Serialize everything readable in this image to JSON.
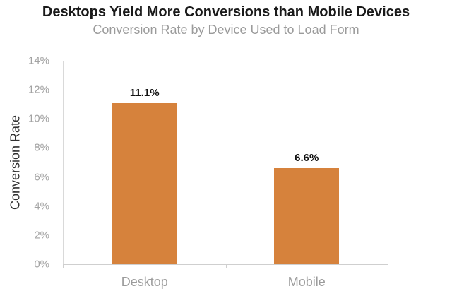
{
  "chart": {
    "title": "Desktops Yield More Conversions than Mobile Devices",
    "subtitle": "Conversion Rate by Device Used to Load Form",
    "ylabel": "Conversion Rate"
  },
  "chart_data": {
    "type": "bar",
    "title": "Desktops Yield More Conversions than Mobile Devices",
    "subtitle": "Conversion Rate by Device Used to Load Form",
    "xlabel": "",
    "ylabel": "Conversion Rate",
    "categories": [
      "Desktop",
      "Mobile"
    ],
    "values": [
      11.1,
      6.6
    ],
    "data_labels": [
      "11.1%",
      "6.6%"
    ],
    "ylim": [
      0,
      14
    ],
    "ytick_step": 2,
    "ytick_labels": [
      "0%",
      "2%",
      "4%",
      "6%",
      "8%",
      "10%",
      "12%",
      "14%"
    ],
    "grid": "horizontal-dashed",
    "legend": "none",
    "colors": {
      "bar": "#D6823C",
      "title_text": "#1A1A1A",
      "muted_text": "#9B9B9B",
      "value_label_text": "#111111",
      "axis_line": "#CFCFCF",
      "gridline": "#DCDCDC"
    }
  }
}
